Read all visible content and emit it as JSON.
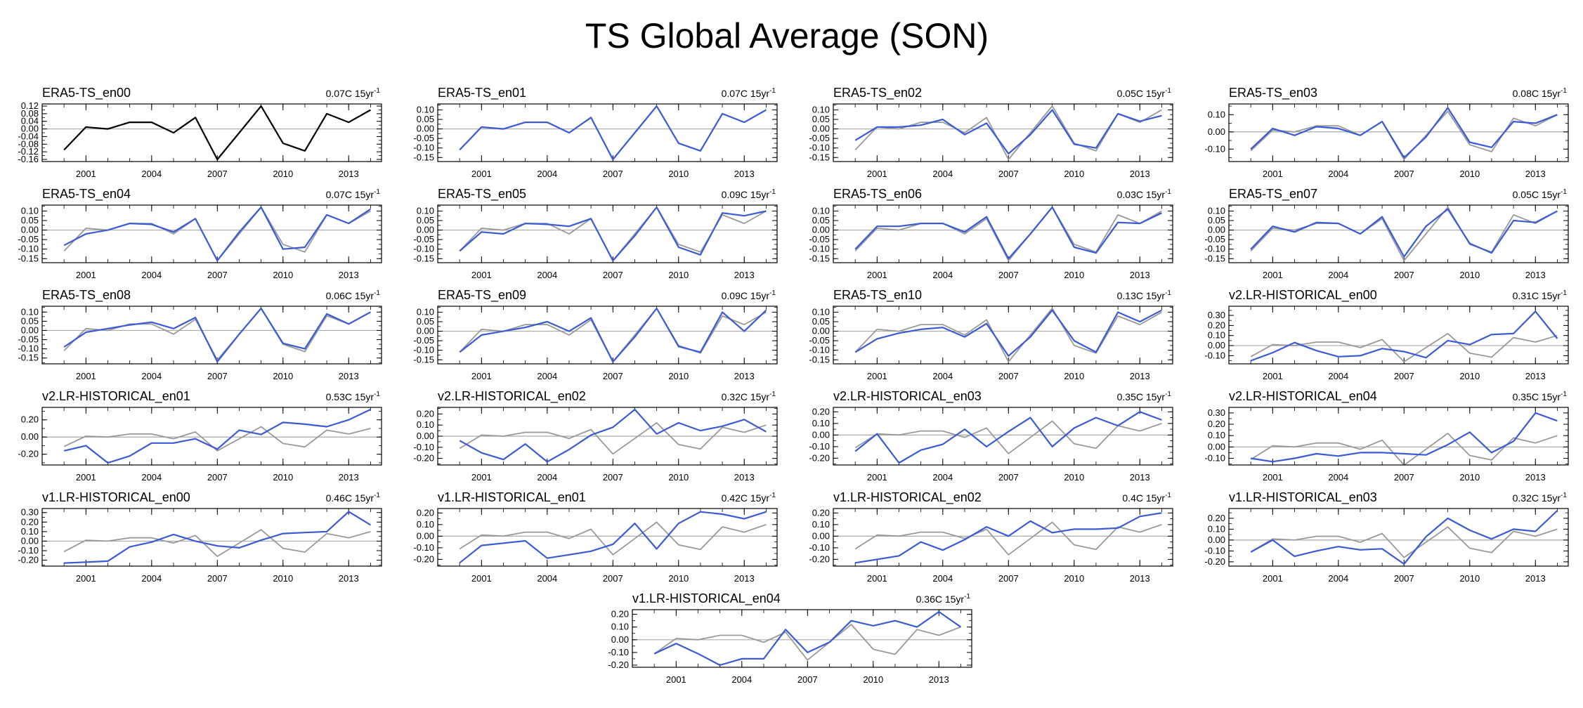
{
  "chart_data": {
    "type": "line",
    "title": "TS Global Average (SON)",
    "years": [
      2000,
      2001,
      2002,
      2003,
      2004,
      2005,
      2006,
      2007,
      2008,
      2009,
      2010,
      2011,
      2012,
      2013,
      2014
    ],
    "x_tick_labels": [
      "2001",
      "2004",
      "2007",
      "2010",
      "2013"
    ],
    "trend_unit": "15yr",
    "reference": {
      "name": "ERA5-TS_en00",
      "values": [
        -0.11,
        0.01,
        0.0,
        0.035,
        0.035,
        -0.02,
        0.06,
        -0.16,
        -0.02,
        0.12,
        -0.075,
        -0.115,
        0.08,
        0.035,
        0.1
      ]
    },
    "colors": {
      "reference": "#000000",
      "ensemble": "#3a5bd6",
      "reference_overlay": "#999999"
    },
    "panels": [
      {
        "title": "ERA5-TS_en00",
        "trend": "0.07C",
        "yticks": [
          "0.12",
          "0.08",
          "0.04",
          "0.00",
          "-0.04",
          "-0.08",
          "-0.12",
          "-0.16"
        ],
        "ylim": [
          -0.16,
          0.12
        ],
        "values": [
          -0.11,
          0.01,
          0.0,
          0.035,
          0.035,
          -0.02,
          0.06,
          -0.16,
          -0.02,
          0.12,
          -0.075,
          -0.115,
          0.08,
          0.035,
          0.1
        ]
      },
      {
        "title": "ERA5-TS_en01",
        "trend": "0.07C",
        "yticks": [
          "0.10",
          "0.05",
          "0.00",
          "-0.05",
          "-0.10",
          "-0.15"
        ],
        "ylim": [
          -0.16,
          0.12
        ],
        "values": [
          -0.11,
          0.01,
          0.0,
          0.035,
          0.035,
          -0.02,
          0.06,
          -0.16,
          -0.02,
          0.12,
          -0.075,
          -0.115,
          0.08,
          0.035,
          0.1
        ]
      },
      {
        "title": "ERA5-TS_en02",
        "trend": "0.05C",
        "yticks": [
          "0.10",
          "0.05",
          "0.00",
          "-0.05",
          "-0.10",
          "-0.15"
        ],
        "ylim": [
          -0.16,
          0.12
        ],
        "values": [
          -0.06,
          0.01,
          0.01,
          0.02,
          0.05,
          -0.03,
          0.03,
          -0.13,
          -0.03,
          0.1,
          -0.08,
          -0.1,
          0.08,
          0.04,
          0.07
        ]
      },
      {
        "title": "ERA5-TS_en03",
        "trend": "0.08C",
        "yticks": [
          "0.10",
          "0.00",
          "-0.10"
        ],
        "ylim": [
          -0.16,
          0.15
        ],
        "values": [
          -0.1,
          0.02,
          -0.02,
          0.03,
          0.02,
          -0.02,
          0.06,
          -0.15,
          -0.03,
          0.14,
          -0.06,
          -0.09,
          0.06,
          0.05,
          0.1
        ]
      },
      {
        "title": "ERA5-TS_en04",
        "trend": "0.07C",
        "yticks": [
          "0.10",
          "0.05",
          "0.00",
          "-0.05",
          "-0.10",
          "-0.15"
        ],
        "ylim": [
          -0.16,
          0.12
        ],
        "values": [
          -0.08,
          -0.02,
          0.0,
          0.035,
          0.03,
          -0.01,
          0.06,
          -0.16,
          -0.01,
          0.12,
          -0.1,
          -0.09,
          0.08,
          0.035,
          0.11
        ]
      },
      {
        "title": "ERA5-TS_en05",
        "trend": "0.09C",
        "yticks": [
          "0.10",
          "0.05",
          "0.00",
          "-0.05",
          "-0.10",
          "-0.15"
        ],
        "ylim": [
          -0.16,
          0.12
        ],
        "values": [
          -0.11,
          -0.01,
          -0.02,
          0.035,
          0.03,
          0.02,
          0.06,
          -0.16,
          -0.03,
          0.12,
          -0.09,
          -0.13,
          0.09,
          0.075,
          0.1
        ]
      },
      {
        "title": "ERA5-TS_en06",
        "trend": "0.03C",
        "yticks": [
          "0.10",
          "0.05",
          "0.00",
          "-0.05",
          "-0.10",
          "-0.15"
        ],
        "ylim": [
          -0.16,
          0.12
        ],
        "values": [
          -0.1,
          0.02,
          0.02,
          0.035,
          0.035,
          -0.01,
          0.07,
          -0.15,
          -0.02,
          0.12,
          -0.09,
          -0.12,
          0.04,
          0.035,
          0.09
        ]
      },
      {
        "title": "ERA5-TS_en07",
        "trend": "0.05C",
        "yticks": [
          "0.10",
          "0.05",
          "0.00",
          "-0.05",
          "-0.10",
          "-0.15"
        ],
        "ylim": [
          -0.16,
          0.12
        ],
        "values": [
          -0.1,
          0.02,
          -0.01,
          0.04,
          0.035,
          -0.02,
          0.07,
          -0.14,
          0.02,
          0.11,
          -0.07,
          -0.12,
          0.05,
          0.04,
          0.1
        ]
      },
      {
        "title": "ERA5-TS_en08",
        "trend": "0.06C",
        "yticks": [
          "0.10",
          "0.05",
          "0.00",
          "-0.05",
          "-0.10",
          "-0.15"
        ],
        "ylim": [
          -0.17,
          0.12
        ],
        "values": [
          -0.09,
          -0.01,
          0.01,
          0.03,
          0.045,
          0.01,
          0.07,
          -0.17,
          -0.02,
          0.12,
          -0.07,
          -0.1,
          0.09,
          0.035,
          0.1
        ]
      },
      {
        "title": "ERA5-TS_en09",
        "trend": "0.09C",
        "yticks": [
          "0.10",
          "0.05",
          "0.00",
          "-0.05",
          "-0.10",
          "-0.15"
        ],
        "ylim": [
          -0.16,
          0.12
        ],
        "values": [
          -0.11,
          -0.02,
          0.0,
          0.02,
          0.05,
          0.0,
          0.07,
          -0.16,
          -0.03,
          0.12,
          -0.08,
          -0.11,
          0.1,
          0.0,
          0.11
        ]
      },
      {
        "title": "ERA5-TS_en10",
        "trend": "0.13C",
        "yticks": [
          "0.10",
          "0.05",
          "0.00",
          "-0.05",
          "-0.10",
          "-0.15"
        ],
        "ylim": [
          -0.16,
          0.12
        ],
        "values": [
          -0.11,
          -0.04,
          -0.01,
          0.01,
          0.02,
          -0.03,
          0.04,
          -0.13,
          -0.03,
          0.11,
          -0.05,
          -0.11,
          0.1,
          0.05,
          0.11
        ]
      },
      {
        "title": "v2.LR-HISTORICAL_en00",
        "trend": "0.31C",
        "yticks": [
          "0.30",
          "0.20",
          "0.10",
          "0.00",
          "-0.10"
        ],
        "ylim": [
          -0.16,
          0.37
        ],
        "values": [
          -0.15,
          -0.07,
          0.03,
          -0.05,
          -0.11,
          -0.1,
          -0.03,
          -0.06,
          -0.12,
          0.05,
          0.01,
          0.11,
          0.12,
          0.34,
          0.07
        ]
      },
      {
        "title": "v2.LR-HISTORICAL_en01",
        "trend": "0.53C",
        "yticks": [
          "0.20",
          "0.00",
          "-0.20"
        ],
        "ylim": [
          -0.3,
          0.32
        ],
        "values": [
          -0.16,
          -0.1,
          -0.3,
          -0.22,
          -0.07,
          -0.07,
          -0.02,
          -0.14,
          0.08,
          0.03,
          0.17,
          0.15,
          0.12,
          0.2,
          0.32
        ]
      },
      {
        "title": "v2.LR-HISTORICAL_en02",
        "trend": "0.32C",
        "yticks": [
          "0.20",
          "0.10",
          "0.00",
          "-0.10",
          "-0.20"
        ],
        "ylim": [
          -0.24,
          0.24
        ],
        "values": [
          -0.04,
          -0.15,
          -0.21,
          -0.07,
          -0.23,
          -0.12,
          0.01,
          0.08,
          0.24,
          0.02,
          0.12,
          0.05,
          0.09,
          0.15,
          0.04
        ]
      },
      {
        "title": "v2.LR-HISTORICAL_en03",
        "trend": "0.35C",
        "yticks": [
          "0.20",
          "0.10",
          "0.00",
          "-0.10",
          "-0.20"
        ],
        "ylim": [
          -0.24,
          0.22
        ],
        "values": [
          -0.14,
          0.01,
          -0.24,
          -0.13,
          -0.08,
          0.05,
          -0.1,
          0.03,
          0.15,
          -0.1,
          0.06,
          0.15,
          0.08,
          0.2,
          0.13
        ]
      },
      {
        "title": "v2.LR-HISTORICAL_en04",
        "trend": "0.35C",
        "yticks": [
          "0.30",
          "0.20",
          "0.10",
          "0.00",
          "-0.10"
        ],
        "ylim": [
          -0.14,
          0.33
        ],
        "values": [
          -0.1,
          -0.13,
          -0.1,
          -0.06,
          -0.08,
          -0.05,
          -0.05,
          -0.06,
          -0.07,
          0.02,
          0.13,
          -0.05,
          0.05,
          0.3,
          0.23
        ]
      },
      {
        "title": "v1.LR-HISTORICAL_en00",
        "trend": "0.46C",
        "yticks": [
          "0.30",
          "0.20",
          "0.10",
          "0.00",
          "-0.10",
          "-0.20"
        ],
        "ylim": [
          -0.24,
          0.32
        ],
        "values": [
          -0.23,
          -0.22,
          -0.21,
          -0.06,
          -0.01,
          0.07,
          0.0,
          -0.05,
          -0.07,
          0.01,
          0.08,
          0.09,
          0.1,
          0.31,
          0.17
        ]
      },
      {
        "title": "v1.LR-HISTORICAL_en01",
        "trend": "0.42C",
        "yticks": [
          "0.20",
          "0.10",
          "0.00",
          "-0.10",
          "-0.20"
        ],
        "ylim": [
          -0.24,
          0.22
        ],
        "values": [
          -0.23,
          -0.08,
          -0.06,
          -0.04,
          -0.19,
          -0.16,
          -0.13,
          -0.07,
          0.11,
          -0.11,
          0.11,
          0.21,
          0.19,
          0.15,
          0.21
        ]
      },
      {
        "title": "v1.LR-HISTORICAL_en02",
        "trend": "0.4C",
        "yticks": [
          "0.20",
          "0.10",
          "0.00",
          "-0.10",
          "-0.20"
        ],
        "ylim": [
          -0.24,
          0.22
        ],
        "values": [
          -0.23,
          -0.2,
          -0.17,
          -0.05,
          -0.12,
          -0.03,
          0.08,
          0.0,
          0.13,
          0.03,
          0.06,
          0.06,
          0.07,
          0.17,
          0.2
        ]
      },
      {
        "title": "v1.LR-HISTORICAL_en03",
        "trend": "0.32C",
        "yticks": [
          "0.20",
          "0.10",
          "0.00",
          "-0.10",
          "-0.20"
        ],
        "ylim": [
          -0.22,
          0.27
        ],
        "values": [
          -0.11,
          0.0,
          -0.15,
          -0.1,
          -0.06,
          -0.09,
          -0.08,
          -0.22,
          0.03,
          0.2,
          0.09,
          0.01,
          0.1,
          0.08,
          0.27
        ]
      },
      {
        "title": "v1.LR-HISTORICAL_en04",
        "trend": "0.36C",
        "yticks": [
          "0.20",
          "0.10",
          "0.00",
          "-0.10",
          "-0.20"
        ],
        "ylim": [
          -0.2,
          0.22
        ],
        "values": [
          -0.11,
          -0.03,
          -0.11,
          -0.2,
          -0.15,
          -0.15,
          0.08,
          -0.1,
          -0.02,
          0.15,
          0.11,
          0.15,
          0.1,
          0.22,
          0.1
        ]
      }
    ]
  }
}
